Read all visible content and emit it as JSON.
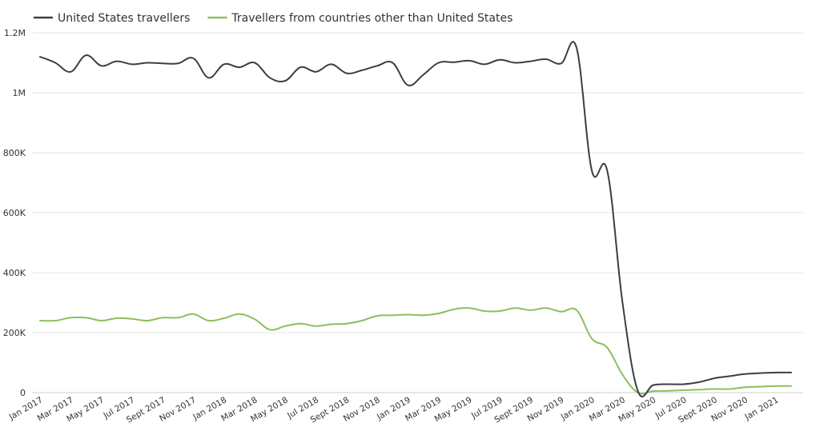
{
  "chart_data": {
    "type": "line",
    "title": "",
    "xlabel": "",
    "ylabel": "",
    "ylim": [
      0,
      1200000
    ],
    "grid": true,
    "legend_position": "top-left",
    "y_ticks": [
      {
        "value": 0,
        "label": "0"
      },
      {
        "value": 200000,
        "label": "200K"
      },
      {
        "value": 400000,
        "label": "400K"
      },
      {
        "value": 600000,
        "label": "600K"
      },
      {
        "value": 800000,
        "label": "800K"
      },
      {
        "value": 1000000,
        "label": "1M"
      },
      {
        "value": 1200000,
        "label": "1.2M"
      }
    ],
    "x_ticks": [
      {
        "index": 0,
        "label": "Jan 2017"
      },
      {
        "index": 2,
        "label": "Mar 2017"
      },
      {
        "index": 4,
        "label": "May 2017"
      },
      {
        "index": 6,
        "label": "Jul 2017"
      },
      {
        "index": 8,
        "label": "Sept 2017"
      },
      {
        "index": 10,
        "label": "Nov 2017"
      },
      {
        "index": 12,
        "label": "Jan 2018"
      },
      {
        "index": 14,
        "label": "Mar 2018"
      },
      {
        "index": 16,
        "label": "May 2018"
      },
      {
        "index": 18,
        "label": "Jul 2018"
      },
      {
        "index": 20,
        "label": "Sept 2018"
      },
      {
        "index": 22,
        "label": "Nov 2018"
      },
      {
        "index": 24,
        "label": "Jan 2019"
      },
      {
        "index": 26,
        "label": "Mar 2019"
      },
      {
        "index": 28,
        "label": "May 2019"
      },
      {
        "index": 30,
        "label": "Jul 2019"
      },
      {
        "index": 32,
        "label": "Sept 2019"
      },
      {
        "index": 34,
        "label": "Nov 2019"
      },
      {
        "index": 36,
        "label": "Jan 2020"
      },
      {
        "index": 38,
        "label": "Mar 2020"
      },
      {
        "index": 40,
        "label": "May 2020"
      },
      {
        "index": 42,
        "label": "Jul 2020"
      },
      {
        "index": 44,
        "label": "Sept 2020"
      },
      {
        "index": 46,
        "label": "Nov 2020"
      },
      {
        "index": 48,
        "label": "Jan 2021"
      }
    ],
    "series": [
      {
        "name": "United States travellers",
        "color": "#3a3f44",
        "values": [
          1120000,
          1100000,
          1070000,
          1125000,
          1090000,
          1105000,
          1095000,
          1100000,
          1098000,
          1098000,
          1115000,
          1050000,
          1095000,
          1085000,
          1100000,
          1050000,
          1040000,
          1085000,
          1070000,
          1095000,
          1065000,
          1075000,
          1090000,
          1100000,
          1025000,
          1060000,
          1100000,
          1102000,
          1107000,
          1095000,
          1110000,
          1100000,
          1105000,
          1112000,
          1098000,
          1150000,
          740000,
          740000,
          300000,
          5000,
          25000,
          28000,
          28000,
          35000,
          48000,
          55000,
          62000,
          65000,
          67000,
          67000
        ]
      },
      {
        "name": "Travellers from countries other than United States",
        "color": "#8cbf5a",
        "values": [
          240000,
          240000,
          250000,
          250000,
          240000,
          248000,
          246000,
          240000,
          250000,
          250000,
          262000,
          240000,
          248000,
          262000,
          245000,
          210000,
          222000,
          230000,
          222000,
          228000,
          230000,
          240000,
          256000,
          258000,
          260000,
          258000,
          264000,
          278000,
          282000,
          272000,
          272000,
          282000,
          275000,
          282000,
          270000,
          275000,
          180000,
          150000,
          60000,
          0,
          5000,
          6000,
          8000,
          10000,
          12000,
          12000,
          18000,
          20000,
          22000,
          22000
        ]
      }
    ]
  }
}
